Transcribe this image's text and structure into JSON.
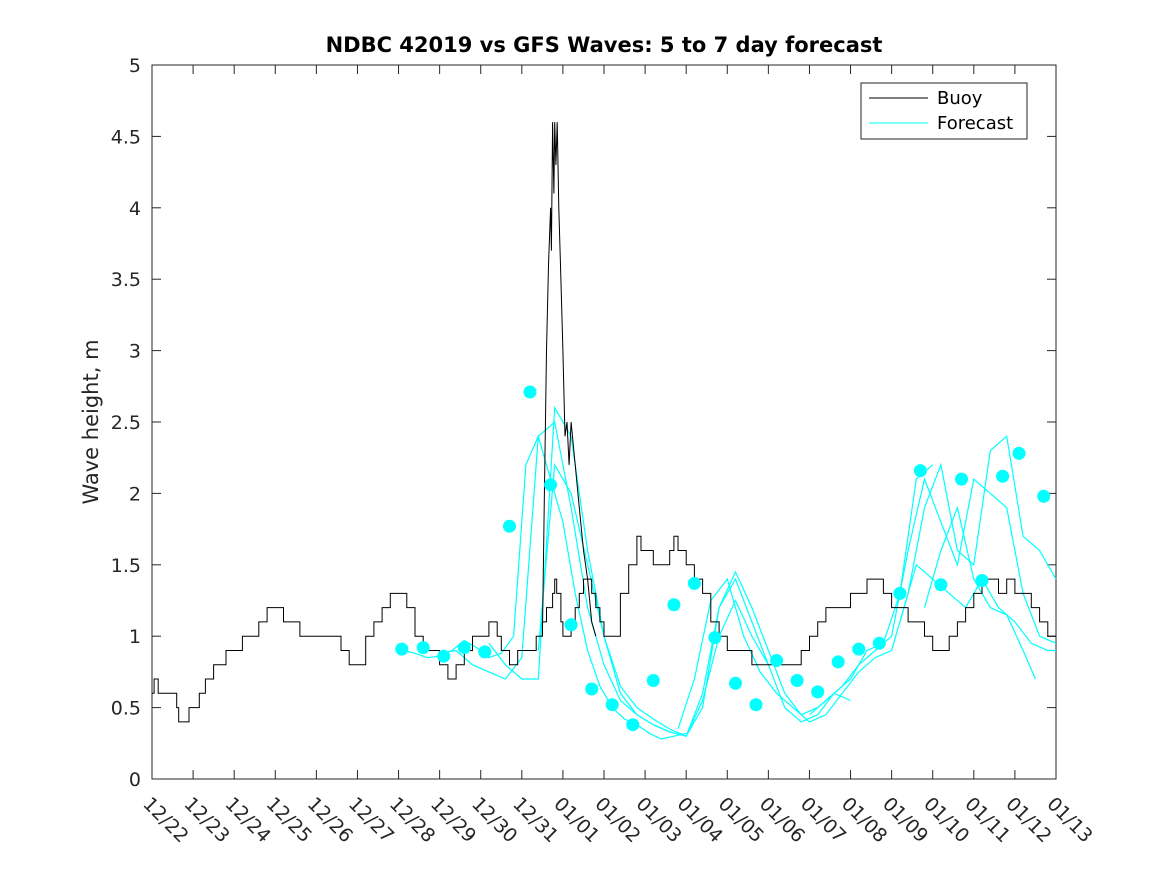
{
  "chart_data": {
    "type": "line",
    "title": "NDBC 42019 vs GFS Waves: 5 to 7 day forecast",
    "xlabel": "",
    "ylabel": "Wave height, m",
    "ylim": [
      0,
      5
    ],
    "yticks": [
      0,
      0.5,
      1,
      1.5,
      2,
      2.5,
      3,
      3.5,
      4,
      4.5,
      5
    ],
    "ytick_labels": [
      "0",
      "0.5",
      "1",
      "1.5",
      "2",
      "2.5",
      "3",
      "3.5",
      "4",
      "4.5",
      "5"
    ],
    "xlim_days": [
      -1,
      21
    ],
    "xtick_labels": [
      "12/22",
      "12/23",
      "12/24",
      "12/25",
      "12/26",
      "12/27",
      "12/28",
      "12/29",
      "12/30",
      "12/31",
      "01/01",
      "01/02",
      "01/03",
      "01/04",
      "01/05",
      "01/06",
      "01/07",
      "01/08",
      "01/09",
      "01/10",
      "01/11",
      "01/12",
      "01/13"
    ],
    "legend": {
      "position": "top-right",
      "entries": [
        "Buoy",
        "Forecast"
      ]
    },
    "colors": {
      "buoy": "#000000",
      "forecast": "#00ffff",
      "axes": "#262626"
    },
    "buoy": {
      "name": "Buoy",
      "x": [
        -1.0,
        -0.95,
        -0.9,
        -0.85,
        -0.8,
        -0.6,
        -0.4,
        -0.35,
        -0.2,
        -0.1,
        0.0,
        0.15,
        0.3,
        0.5,
        0.6,
        0.8,
        1.0,
        1.2,
        1.4,
        1.6,
        1.8,
        2.0,
        2.2,
        2.4,
        2.6,
        2.8,
        3.0,
        3.2,
        3.4,
        3.6,
        3.8,
        4.0,
        4.2,
        4.4,
        4.6,
        4.8,
        5.0,
        5.2,
        5.4,
        5.6,
        5.8,
        6.0,
        6.2,
        6.4,
        6.6,
        6.8,
        6.9,
        7.0,
        7.2,
        7.4,
        7.5,
        7.6,
        7.7,
        7.8,
        7.9,
        8.0,
        8.2,
        8.35,
        8.5,
        8.6,
        8.7,
        8.75,
        8.8,
        8.85,
        8.9,
        8.95,
        9.0,
        9.1,
        9.2,
        9.3,
        9.4,
        9.5,
        9.6,
        9.7,
        9.8,
        9.9,
        10.0,
        10.2,
        10.4,
        10.6,
        10.8,
        10.9,
        11.0,
        11.2,
        11.4,
        11.6,
        11.7,
        11.8,
        12.0,
        12.2,
        12.4,
        12.6,
        12.8,
        13.0,
        13.2,
        13.4,
        13.6,
        13.8,
        14.0,
        14.2,
        14.4,
        14.6,
        14.8,
        15.0,
        15.2,
        15.4,
        15.6,
        15.8,
        16.0,
        16.2,
        16.4,
        16.6,
        16.8,
        17.0,
        17.2,
        17.4,
        17.6,
        17.8,
        18.0,
        18.2,
        18.4,
        18.6,
        18.8,
        19.0,
        19.2,
        19.4,
        19.6,
        19.8,
        20.0,
        20.2,
        20.4,
        20.6,
        20.8,
        21.0
      ],
      "y": [
        0.6,
        0.7,
        0.7,
        0.6,
        0.6,
        0.6,
        0.5,
        0.4,
        0.4,
        0.5,
        0.5,
        0.6,
        0.7,
        0.8,
        0.8,
        0.9,
        0.9,
        1.0,
        1.0,
        1.1,
        1.2,
        1.2,
        1.1,
        1.1,
        1.0,
        1.0,
        1.0,
        1.0,
        1.0,
        0.9,
        0.8,
        0.8,
        1.0,
        1.1,
        1.2,
        1.3,
        1.3,
        1.2,
        1.0,
        0.9,
        0.9,
        0.8,
        0.7,
        0.8,
        0.9,
        1.0,
        1.0,
        1.0,
        1.1,
        1.0,
        0.9,
        0.9,
        0.8,
        0.8,
        0.9,
        0.9,
        0.9,
        1.0,
        1.1,
        1.2,
        1.2,
        1.3,
        1.4,
        1.3,
        1.3,
        1.1,
        1.0,
        1.0,
        1.1,
        1.2,
        1.3,
        1.4,
        1.4,
        1.3,
        1.2,
        1.1,
        1.0,
        1.0,
        1.3,
        1.5,
        1.7,
        1.6,
        1.6,
        1.5,
        1.5,
        1.6,
        1.7,
        1.6,
        1.5,
        1.4,
        1.3,
        1.1,
        1.0,
        0.9,
        0.9,
        0.9,
        0.8,
        0.8,
        0.8,
        0.8,
        0.8,
        0.8,
        0.9,
        1.0,
        1.1,
        1.2,
        1.2,
        1.2,
        1.3,
        1.3,
        1.4,
        1.4,
        1.3,
        1.2,
        1.2,
        1.1,
        1.1,
        1.0,
        0.9,
        0.9,
        1.0,
        1.1,
        1.2,
        1.3,
        1.4,
        1.4,
        1.3,
        1.4,
        1.3,
        1.3,
        1.2,
        1.1,
        1.0,
        1.0
      ],
      "note": "black step line of measured wave height"
    },
    "forecast_series": [
      {
        "name": "Forecast",
        "x": [
          5.1,
          5.4,
          5.7,
          6.0,
          6.3,
          6.6,
          6.9,
          7.2,
          7.5,
          7.8,
          8.1,
          8.4,
          8.7,
          9.0,
          9.3,
          9.6,
          9.9,
          10.2,
          10.5,
          10.8,
          11.1,
          11.4,
          11.7,
          12.0
        ],
        "y": [
          0.9,
          0.88,
          0.85,
          0.86,
          0.9,
          0.97,
          0.92,
          0.85,
          0.88,
          1.0,
          2.2,
          2.4,
          2.1,
          1.8,
          1.3,
          0.9,
          0.65,
          0.5,
          0.42,
          0.38,
          0.32,
          0.28,
          0.3,
          0.32
        ]
      },
      {
        "name": "Forecast",
        "x": [
          6.0,
          6.4,
          6.8,
          7.2,
          7.6,
          8.0,
          8.4,
          8.8,
          9.2,
          9.6,
          10.0,
          10.4,
          10.8,
          11.2,
          11.6,
          12.0,
          12.4,
          12.8,
          13.2,
          13.6,
          14.0
        ],
        "y": [
          0.88,
          0.9,
          0.8,
          0.75,
          0.7,
          0.85,
          2.4,
          2.5,
          1.9,
          1.2,
          0.8,
          0.55,
          0.45,
          0.38,
          0.33,
          0.3,
          0.55,
          1.0,
          1.25,
          1.0,
          0.8
        ]
      },
      {
        "name": "Forecast",
        "x": [
          7.2,
          7.6,
          8.0,
          8.4,
          8.8,
          9.2,
          9.6,
          10.0,
          10.4,
          10.8,
          11.2,
          11.6,
          12.0,
          12.4,
          12.8,
          13.2,
          13.6,
          14.0,
          14.4,
          14.8,
          15.2,
          15.6,
          16.0
        ],
        "y": [
          0.95,
          0.8,
          0.7,
          0.7,
          2.6,
          2.4,
          1.6,
          1.0,
          0.6,
          0.45,
          0.38,
          0.33,
          0.3,
          0.5,
          1.2,
          1.45,
          1.2,
          0.9,
          0.6,
          0.45,
          0.5,
          0.6,
          0.55
        ]
      },
      {
        "name": "Forecast",
        "x": [
          8.4,
          8.8,
          9.2,
          9.6,
          10.0,
          10.4,
          10.8,
          11.2,
          11.6,
          12.0,
          12.4,
          12.8,
          13.2,
          13.6,
          14.0,
          14.4,
          14.8,
          15.2,
          15.6,
          16.0,
          16.4,
          16.8,
          17.2,
          17.6,
          18.0
        ],
        "y": [
          0.9,
          2.2,
          2.0,
          1.5,
          1.0,
          0.65,
          0.5,
          0.42,
          0.35,
          0.3,
          0.6,
          1.2,
          1.4,
          1.1,
          0.8,
          0.5,
          0.4,
          0.45,
          0.6,
          0.7,
          0.9,
          0.95,
          1.3,
          2.1,
          2.2
        ]
      },
      {
        "name": "Forecast",
        "x": [
          11.8,
          12.2,
          12.6,
          13.0,
          13.4,
          13.8,
          14.2,
          14.6,
          15.0,
          15.4,
          15.8,
          16.2,
          16.6,
          17.0,
          17.4,
          17.8,
          18.2,
          18.6,
          19.0,
          19.4,
          19.8,
          20.2,
          20.6,
          21.0
        ],
        "y": [
          0.35,
          0.7,
          1.25,
          1.4,
          1.0,
          0.75,
          0.6,
          0.5,
          0.4,
          0.45,
          0.6,
          0.75,
          0.85,
          0.9,
          1.3,
          1.9,
          2.2,
          1.6,
          1.5,
          2.3,
          2.4,
          1.7,
          1.6,
          1.4
        ]
      },
      {
        "name": "Forecast",
        "x": [
          15.0,
          15.4,
          15.8,
          16.2,
          16.6,
          17.0,
          17.4,
          17.8,
          18.2,
          18.6,
          19.0,
          19.4,
          19.8,
          20.2,
          20.6,
          21.0
        ],
        "y": [
          0.45,
          0.55,
          0.65,
          0.8,
          0.9,
          1.0,
          1.6,
          2.1,
          1.8,
          1.5,
          2.1,
          2.0,
          1.9,
          1.3,
          1.0,
          0.95
        ]
      },
      {
        "name": "Forecast",
        "x": [
          17.2,
          17.6,
          18.0,
          18.4,
          18.8,
          19.2,
          19.6,
          20.0,
          20.4,
          20.8,
          21.0
        ],
        "y": [
          1.1,
          1.5,
          1.4,
          1.3,
          1.2,
          1.4,
          1.2,
          1.1,
          0.95,
          0.9,
          0.9
        ]
      },
      {
        "name": "Forecast",
        "x": [
          17.8,
          18.2,
          18.6,
          19.0,
          19.4,
          19.8,
          20.2,
          20.5
        ],
        "y": [
          1.2,
          1.6,
          1.9,
          1.4,
          1.2,
          1.15,
          0.9,
          0.7
        ]
      }
    ],
    "forecast_points": {
      "name": "Forecast",
      "x": [
        5.08,
        5.6,
        6.1,
        6.6,
        7.1,
        7.7,
        8.2,
        8.7,
        9.2,
        9.7,
        10.2,
        10.7,
        11.2,
        11.7,
        12.2,
        12.7,
        13.2,
        13.7,
        14.2,
        14.7,
        15.2,
        15.7,
        16.2,
        16.7,
        17.2,
        17.7,
        18.2,
        18.7,
        19.2,
        19.7,
        20.1,
        20.7
      ],
      "y": [
        0.91,
        0.92,
        0.86,
        0.92,
        0.89,
        1.77,
        2.71,
        2.06,
        1.08,
        0.63,
        0.52,
        0.38,
        0.69,
        1.22,
        1.37,
        0.99,
        0.67,
        0.52,
        0.83,
        0.69,
        0.61,
        0.82,
        0.91,
        0.95,
        1.3,
        2.16,
        1.36,
        2.1,
        1.39,
        2.12,
        2.28,
        1.98
      ]
    }
  }
}
